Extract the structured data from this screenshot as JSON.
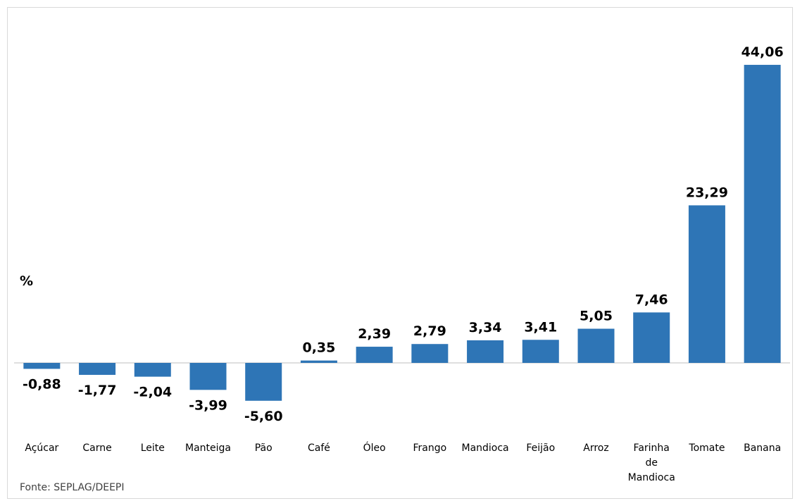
{
  "chart_data": {
    "type": "bar",
    "ylabel": "%",
    "categories": [
      "Açúcar",
      "Carne",
      "Leite",
      "Manteiga",
      "Pão",
      "Café",
      "Óleo",
      "Frango",
      "Mandioca",
      "Feijão",
      "Arroz",
      "Farinha de Mandioca",
      "Tomate",
      "Banana"
    ],
    "category_lines": [
      [
        "Açúcar"
      ],
      [
        "Carne"
      ],
      [
        "Leite"
      ],
      [
        "Manteiga"
      ],
      [
        "Pão"
      ],
      [
        "Café"
      ],
      [
        "Óleo"
      ],
      [
        "Frango"
      ],
      [
        "Mandioca"
      ],
      [
        "Feijão"
      ],
      [
        "Arroz"
      ],
      [
        "Farinha",
        "de",
        "Mandioca"
      ],
      [
        "Tomate"
      ],
      [
        "Banana"
      ]
    ],
    "values": [
      -0.88,
      -1.77,
      -2.04,
      -3.99,
      -5.6,
      0.35,
      2.39,
      2.79,
      3.34,
      3.41,
      5.05,
      7.46,
      23.29,
      44.06
    ],
    "value_labels": [
      "-0,88",
      "-1,77",
      "-2,04",
      "-3,99",
      "-5,60",
      "0,35",
      "2,39",
      "2,79",
      "3,34",
      "3,41",
      "5,05",
      "7,46",
      "23,29",
      "44,06"
    ],
    "bar_color": "#2E75B6",
    "grid": false,
    "legend": "none"
  },
  "source": "Fonte: SEPLAG/DEEPI"
}
